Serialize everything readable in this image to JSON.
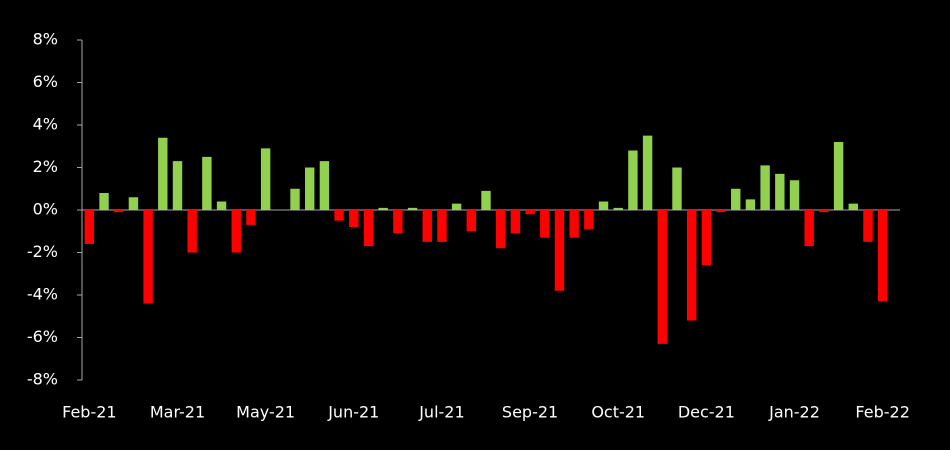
{
  "chart_data": {
    "type": "bar",
    "categories": [
      "Feb-21",
      null,
      null,
      null,
      null,
      null,
      "Mar-21",
      null,
      null,
      null,
      null,
      null,
      "May-21",
      null,
      null,
      null,
      null,
      null,
      "Jun-21",
      null,
      null,
      null,
      null,
      null,
      "Jul-21",
      null,
      null,
      null,
      null,
      null,
      "Sep-21",
      null,
      null,
      null,
      null,
      null,
      "Oct-21",
      null,
      null,
      null,
      null,
      null,
      "Dec-21",
      null,
      null,
      null,
      null,
      null,
      "Jan-22",
      null,
      null,
      null,
      null,
      null,
      "Feb-22"
    ],
    "values": [
      -1.6,
      0.8,
      -0.1,
      0.6,
      -4.4,
      3.4,
      2.3,
      -2.0,
      2.5,
      0.4,
      -2.0,
      -0.7,
      2.9,
      0,
      1.0,
      2.0,
      2.3,
      -0.5,
      -0.8,
      -1.7,
      0.1,
      -1.1,
      0.1,
      -1.5,
      -1.5,
      0.3,
      -1.0,
      0.9,
      -1.8,
      -1.1,
      -0.2,
      -1.3,
      -3.8,
      -1.3,
      -0.9,
      0.4,
      0.1,
      2.8,
      3.5,
      -6.3,
      2.0,
      -5.2,
      -2.6,
      -0.1,
      1.0,
      0.5,
      2.1,
      1.7,
      1.4,
      -1.7,
      -0.1,
      3.2,
      0.3,
      -1.5,
      -4.3
    ],
    "positive_color": "#92d050",
    "negative_color": "#ff0000",
    "ylim": [
      -8,
      8
    ],
    "yticks": [
      {
        "value": -8,
        "label": "-8%"
      },
      {
        "value": -6,
        "label": "-6%"
      },
      {
        "value": -4,
        "label": "-4%"
      },
      {
        "value": -2,
        "label": "-2%"
      },
      {
        "value": 0,
        "label": "0%"
      },
      {
        "value": 2,
        "label": "2%"
      },
      {
        "value": 4,
        "label": "4%"
      },
      {
        "value": 6,
        "label": "6%"
      },
      {
        "value": 8,
        "label": "8%"
      }
    ],
    "grid": false
  }
}
